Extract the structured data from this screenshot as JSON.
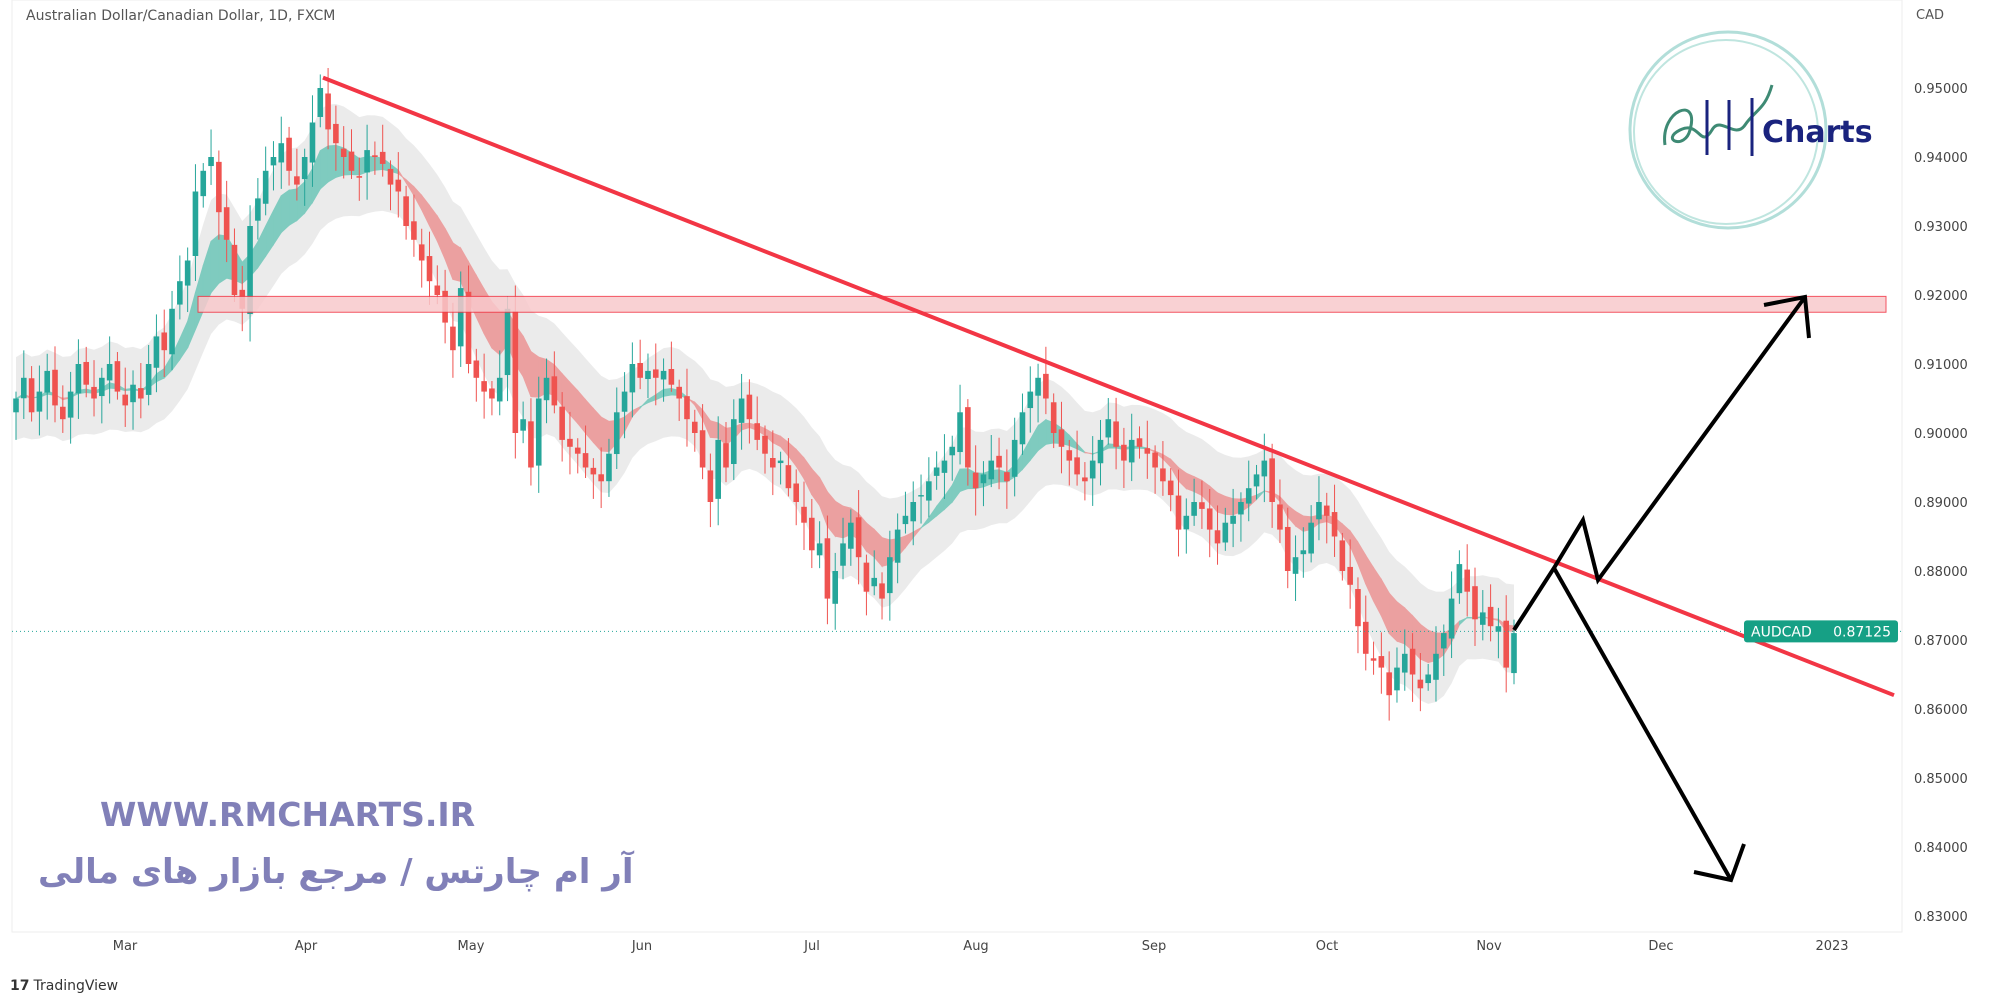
{
  "header": {
    "title": "Australian Dollar/Canadian Dollar, 1D, FXCM",
    "currency": "CAD"
  },
  "watermark": {
    "website": "WWW.RMCHARTS.IR",
    "tagline": "آر ام چارتس / مرجع بازار های مالی",
    "logo_text": "RM Charts"
  },
  "footer": {
    "brand": "TradingView"
  },
  "colors": {
    "up": "#26a69a",
    "down": "#ef5350",
    "trendline": "#f23645",
    "zone_fill": "#f8c9cc",
    "arrows": "#000000",
    "label_bg": "#16a085"
  },
  "chart_data": {
    "type": "candlestick",
    "symbol": "AUDCAD",
    "last_price": "0.87125",
    "ylim": [
      0.825,
      0.958
    ],
    "y_ticks": [
      "0.95000",
      "0.94000",
      "0.93000",
      "0.92000",
      "0.91000",
      "0.90000",
      "0.89000",
      "0.88000",
      "0.87000",
      "0.86000",
      "0.85000",
      "0.84000",
      "0.83000"
    ],
    "x_ticks": [
      "Mar",
      "Apr",
      "May",
      "Jun",
      "Jul",
      "Aug",
      "Sep",
      "Oct",
      "Nov",
      "Dec",
      "2023"
    ],
    "closes": [
      0.905,
      0.908,
      0.903,
      0.906,
      0.909,
      0.904,
      0.902,
      0.906,
      0.91,
      0.907,
      0.905,
      0.908,
      0.91,
      0.906,
      0.904,
      0.907,
      0.905,
      0.91,
      0.914,
      0.912,
      0.918,
      0.922,
      0.925,
      0.935,
      0.938,
      0.94,
      0.932,
      0.928,
      0.92,
      0.918,
      0.93,
      0.934,
      0.938,
      0.94,
      0.942,
      0.938,
      0.936,
      0.94,
      0.945,
      0.95,
      0.944,
      0.942,
      0.94,
      0.938,
      0.937,
      0.941,
      0.94,
      0.939,
      0.936,
      0.935,
      0.93,
      0.928,
      0.925,
      0.922,
      0.92,
      0.916,
      0.912,
      0.921,
      0.91,
      0.908,
      0.906,
      0.905,
      0.908,
      0.918,
      0.9,
      0.902,
      0.895,
      0.905,
      0.908,
      0.904,
      0.899,
      0.898,
      0.897,
      0.895,
      0.894,
      0.893,
      0.897,
      0.903,
      0.906,
      0.91,
      0.908,
      0.909,
      0.908,
      0.909,
      0.907,
      0.905,
      0.902,
      0.9,
      0.895,
      0.89,
      0.899,
      0.895,
      0.902,
      0.905,
      0.902,
      0.899,
      0.897,
      0.895,
      0.896,
      0.892,
      0.89,
      0.887,
      0.883,
      0.884,
      0.876,
      0.88,
      0.884,
      0.887,
      0.882,
      0.877,
      0.879,
      0.876,
      0.882,
      0.886,
      0.888,
      0.89,
      0.891,
      0.893,
      0.895,
      0.896,
      0.898,
      0.903,
      0.895,
      0.892,
      0.894,
      0.896,
      0.895,
      0.893,
      0.899,
      0.903,
      0.906,
      0.908,
      0.905,
      0.9,
      0.898,
      0.896,
      0.894,
      0.893,
      0.896,
      0.899,
      0.902,
      0.898,
      0.896,
      0.899,
      0.898,
      0.897,
      0.895,
      0.893,
      0.891,
      0.886,
      0.888,
      0.89,
      0.889,
      0.886,
      0.884,
      0.887,
      0.888,
      0.89,
      0.892,
      0.894,
      0.896,
      0.89,
      0.886,
      0.88,
      0.882,
      0.883,
      0.887,
      0.89,
      0.888,
      0.885,
      0.88,
      0.878,
      0.872,
      0.868,
      0.867,
      0.866,
      0.862,
      0.866,
      0.868,
      0.865,
      0.863,
      0.865,
      0.868,
      0.871,
      0.876,
      0.881,
      0.877,
      0.873,
      0.874,
      0.872,
      0.872,
      0.866,
      0.871
    ],
    "trendline": {
      "from_price": 0.9515,
      "to_price": 0.862
    },
    "resistance_zone": [
      0.9175,
      0.9198
    ],
    "grid": false
  }
}
